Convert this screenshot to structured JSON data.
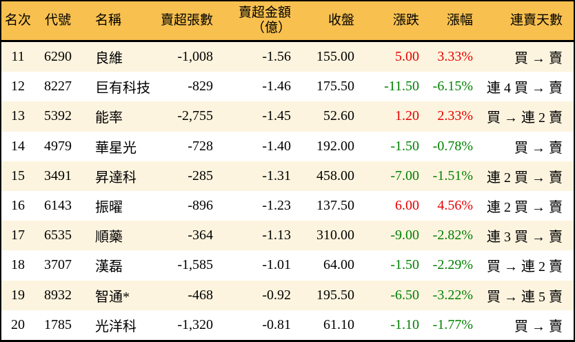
{
  "colors": {
    "header_bg": "#f7c04f",
    "row_alt_bg": "#fdf4df",
    "row_bg": "#ffffff",
    "up": "#e60000",
    "down": "#008000",
    "text": "#000000",
    "border": "#000000"
  },
  "chart_data": {
    "type": "table",
    "title": "",
    "legend": "up values shown red, down values shown green (Taiwan market convention)",
    "columns": [
      {
        "key": "rank",
        "label": "名次"
      },
      {
        "key": "code",
        "label": "代號"
      },
      {
        "key": "name",
        "label": "名稱"
      },
      {
        "key": "sell_volume",
        "label": "賣超張數"
      },
      {
        "key": "sell_amount",
        "label": "賣超金額",
        "sublabel": "（億）"
      },
      {
        "key": "close",
        "label": "收盤"
      },
      {
        "key": "change",
        "label": "漲跌"
      },
      {
        "key": "change_pct",
        "label": "漲幅"
      },
      {
        "key": "streak",
        "label": "連賣天數"
      }
    ],
    "rows": [
      {
        "rank": "11",
        "code": "6290",
        "name": "良維",
        "sell_volume": "-1,008",
        "sell_amount": "-1.56",
        "close": "155.00",
        "change": "5.00",
        "change_pct": "3.33%",
        "streak": "買 → 賣",
        "direction": "up"
      },
      {
        "rank": "12",
        "code": "8227",
        "name": "巨有科技",
        "sell_volume": "-829",
        "sell_amount": "-1.46",
        "close": "175.50",
        "change": "-11.50",
        "change_pct": "-6.15%",
        "streak": "連 4 買 → 賣",
        "direction": "down"
      },
      {
        "rank": "13",
        "code": "5392",
        "name": "能率",
        "sell_volume": "-2,755",
        "sell_amount": "-1.45",
        "close": "52.60",
        "change": "1.20",
        "change_pct": "2.33%",
        "streak": "買 → 連 2 賣",
        "direction": "up"
      },
      {
        "rank": "14",
        "code": "4979",
        "name": "華星光",
        "sell_volume": "-728",
        "sell_amount": "-1.40",
        "close": "192.00",
        "change": "-1.50",
        "change_pct": "-0.78%",
        "streak": "買 → 賣",
        "direction": "down"
      },
      {
        "rank": "15",
        "code": "3491",
        "name": "昇達科",
        "sell_volume": "-285",
        "sell_amount": "-1.31",
        "close": "458.00",
        "change": "-7.00",
        "change_pct": "-1.51%",
        "streak": "連 2 買 → 賣",
        "direction": "down"
      },
      {
        "rank": "16",
        "code": "6143",
        "name": "振曜",
        "sell_volume": "-896",
        "sell_amount": "-1.23",
        "close": "137.50",
        "change": "6.00",
        "change_pct": "4.56%",
        "streak": "連 2 買 → 賣",
        "direction": "up"
      },
      {
        "rank": "17",
        "code": "6535",
        "name": "順藥",
        "sell_volume": "-364",
        "sell_amount": "-1.13",
        "close": "310.00",
        "change": "-9.00",
        "change_pct": "-2.82%",
        "streak": "連 3 買 → 賣",
        "direction": "down"
      },
      {
        "rank": "18",
        "code": "3707",
        "name": "漢磊",
        "sell_volume": "-1,585",
        "sell_amount": "-1.01",
        "close": "64.00",
        "change": "-1.50",
        "change_pct": "-2.29%",
        "streak": "買 → 連 2 賣",
        "direction": "down"
      },
      {
        "rank": "19",
        "code": "8932",
        "name": "智通*",
        "sell_volume": "-468",
        "sell_amount": "-0.92",
        "close": "195.50",
        "change": "-6.50",
        "change_pct": "-3.22%",
        "streak": "買 → 連 5 賣",
        "direction": "down"
      },
      {
        "rank": "20",
        "code": "1785",
        "name": "光洋科",
        "sell_volume": "-1,320",
        "sell_amount": "-0.81",
        "close": "61.10",
        "change": "-1.10",
        "change_pct": "-1.77%",
        "streak": "買 → 賣",
        "direction": "down"
      }
    ]
  }
}
